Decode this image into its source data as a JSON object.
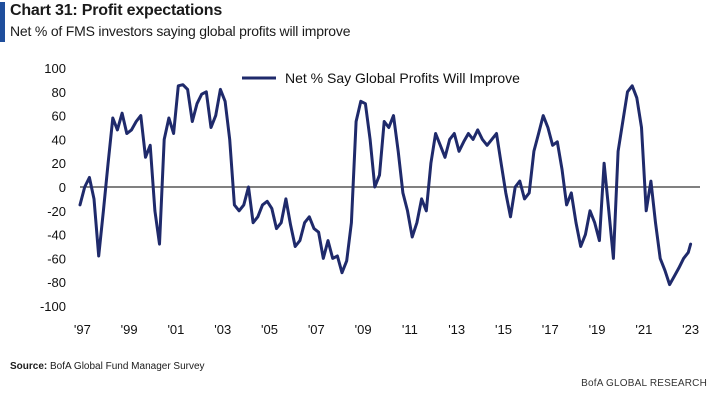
{
  "header": {
    "title": "Chart 31: Profit expectations",
    "subtitle": "Net % of FMS investors saying global profits will improve"
  },
  "source": {
    "label": "Source:",
    "text": "BofA Global Fund Manager Survey"
  },
  "footer": {
    "brand": "BofA GLOBAL RESEARCH"
  },
  "colors": {
    "accent": "#1f4e9c",
    "series": "#1f2a6b",
    "zero_line": "#000000"
  },
  "chart_data": {
    "type": "line",
    "title": "",
    "xlabel": "",
    "ylabel": "",
    "ylim": [
      -100,
      100
    ],
    "yticks": [
      -100,
      -80,
      -60,
      -40,
      -20,
      0,
      20,
      40,
      60,
      80,
      100
    ],
    "xticks": [
      {
        "value": 1997,
        "label": "'97"
      },
      {
        "value": 1999,
        "label": "'99"
      },
      {
        "value": 2001,
        "label": "'01"
      },
      {
        "value": 2003,
        "label": "'03"
      },
      {
        "value": 2005,
        "label": "'05"
      },
      {
        "value": 2007,
        "label": "'07"
      },
      {
        "value": 2009,
        "label": "'09"
      },
      {
        "value": 2011,
        "label": "'11"
      },
      {
        "value": 2013,
        "label": "'13"
      },
      {
        "value": 2015,
        "label": "'15"
      },
      {
        "value": 2017,
        "label": "'17"
      },
      {
        "value": 2019,
        "label": "'19"
      },
      {
        "value": 2021,
        "label": "'21"
      },
      {
        "value": 2023,
        "label": "'23"
      }
    ],
    "xlim": [
      1996.9,
      2023.4
    ],
    "grid": false,
    "legend": "top-center",
    "series": [
      {
        "name": "Net % Say Global Profits Will Improve",
        "x": [
          1996.9,
          1997.1,
          1997.3,
          1997.5,
          1997.7,
          1997.9,
          1998.1,
          1998.3,
          1998.5,
          1998.7,
          1998.9,
          1999.1,
          1999.3,
          1999.5,
          1999.7,
          1999.9,
          2000.1,
          2000.3,
          2000.5,
          2000.7,
          2000.9,
          2001.1,
          2001.3,
          2001.5,
          2001.7,
          2001.9,
          2002.1,
          2002.3,
          2002.5,
          2002.7,
          2002.9,
          2003.1,
          2003.3,
          2003.5,
          2003.7,
          2003.9,
          2004.1,
          2004.3,
          2004.5,
          2004.7,
          2004.9,
          2005.1,
          2005.3,
          2005.5,
          2005.7,
          2005.9,
          2006.1,
          2006.3,
          2006.5,
          2006.7,
          2006.9,
          2007.1,
          2007.3,
          2007.5,
          2007.7,
          2007.9,
          2008.1,
          2008.3,
          2008.5,
          2008.7,
          2008.9,
          2009.1,
          2009.3,
          2009.5,
          2009.7,
          2009.9,
          2010.1,
          2010.3,
          2010.5,
          2010.7,
          2010.9,
          2011.1,
          2011.3,
          2011.5,
          2011.7,
          2011.9,
          2012.1,
          2012.3,
          2012.5,
          2012.7,
          2012.9,
          2013.1,
          2013.3,
          2013.5,
          2013.7,
          2013.9,
          2014.1,
          2014.3,
          2014.5,
          2014.7,
          2014.9,
          2015.1,
          2015.3,
          2015.5,
          2015.7,
          2015.9,
          2016.1,
          2016.3,
          2016.5,
          2016.7,
          2016.9,
          2017.1,
          2017.3,
          2017.5,
          2017.7,
          2017.9,
          2018.1,
          2018.3,
          2018.5,
          2018.7,
          2018.9,
          2019.1,
          2019.3,
          2019.5,
          2019.7,
          2019.9,
          2020.1,
          2020.3,
          2020.5,
          2020.7,
          2020.9,
          2021.1,
          2021.3,
          2021.5,
          2021.7,
          2021.9,
          2022.1,
          2022.3,
          2022.5,
          2022.7,
          2022.9,
          2023.0
        ],
        "values": [
          -15,
          0,
          8,
          -10,
          -58,
          -20,
          20,
          58,
          48,
          62,
          45,
          48,
          55,
          60,
          25,
          35,
          -20,
          -48,
          40,
          58,
          45,
          85,
          86,
          82,
          55,
          70,
          78,
          80,
          50,
          60,
          82,
          72,
          40,
          -15,
          -20,
          -15,
          0,
          -30,
          -25,
          -15,
          -12,
          -18,
          -35,
          -30,
          -10,
          -32,
          -50,
          -45,
          -30,
          -25,
          -35,
          -38,
          -60,
          -45,
          -60,
          -58,
          -72,
          -62,
          -30,
          55,
          72,
          70,
          40,
          0,
          10,
          55,
          50,
          60,
          30,
          -5,
          -20,
          -42,
          -30,
          -10,
          -20,
          20,
          45,
          35,
          25,
          40,
          45,
          30,
          38,
          45,
          40,
          48,
          40,
          35,
          40,
          45,
          20,
          -5,
          -25,
          0,
          5,
          -10,
          -5,
          30,
          45,
          60,
          50,
          35,
          38,
          15,
          -15,
          -5,
          -30,
          -50,
          -40,
          -20,
          -30,
          -45,
          20,
          -20,
          -60,
          30,
          55,
          80,
          85,
          75,
          50,
          -20,
          5,
          -30,
          -60,
          -70,
          -82,
          -75,
          -68,
          -60,
          -55,
          -48
        ]
      }
    ]
  }
}
